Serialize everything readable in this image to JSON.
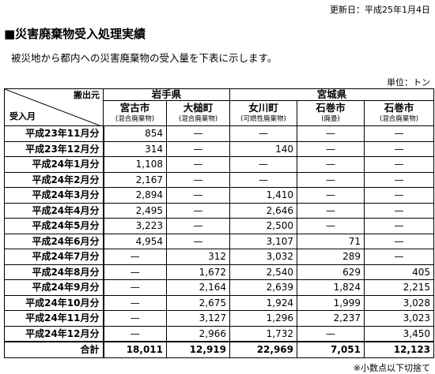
{
  "updated": "更新日：平成25年1月4日",
  "title": "■災害廃棄物受入処理実績",
  "description": "被災地から都内への災害廃棄物の受入量を下表に示します。",
  "unit": "単位：トン",
  "table": {
    "corner": {
      "top": "搬出元",
      "bottom": "受入月"
    },
    "groups": [
      "岩手県",
      "宮城県"
    ],
    "columns": [
      {
        "name": "宮古市",
        "sub": "(混合廃棄物)"
      },
      {
        "name": "大槌町",
        "sub": "(混合廃棄物)"
      },
      {
        "name": "女川町",
        "sub": "(可燃性廃棄物)"
      },
      {
        "name": "石巻市",
        "sub": "(廃畳)"
      },
      {
        "name": "石巻市",
        "sub": "(混合廃棄物)"
      }
    ],
    "rows": [
      {
        "label": "平成23年11月分",
        "cells": [
          "854",
          "—",
          "—",
          "—",
          "—"
        ]
      },
      {
        "label": "平成23年12月分",
        "cells": [
          "314",
          "—",
          "140",
          "—",
          "—"
        ]
      },
      {
        "label": "平成24年1月分",
        "cells": [
          "1,108",
          "—",
          "—",
          "—",
          "—"
        ]
      },
      {
        "label": "平成24年2月分",
        "cells": [
          "2,167",
          "—",
          "—",
          "—",
          "—"
        ]
      },
      {
        "label": "平成24年3月分",
        "cells": [
          "2,894",
          "—",
          "1,410",
          "—",
          "—"
        ]
      },
      {
        "label": "平成24年4月分",
        "cells": [
          "2,495",
          "—",
          "2,646",
          "—",
          "—"
        ]
      },
      {
        "label": "平成24年5月分",
        "cells": [
          "3,223",
          "—",
          "2,500",
          "—",
          "—"
        ]
      },
      {
        "label": "平成24年6月分",
        "cells": [
          "4,954",
          "—",
          "3,107",
          "71",
          "—"
        ]
      },
      {
        "label": "平成24年7月分",
        "cells": [
          "—",
          "312",
          "3,032",
          "289",
          "—"
        ]
      },
      {
        "label": "平成24年8月分",
        "cells": [
          "—",
          "1,672",
          "2,540",
          "629",
          "405"
        ]
      },
      {
        "label": "平成24年9月分",
        "cells": [
          "—",
          "2,164",
          "2,639",
          "1,824",
          "2,215"
        ]
      },
      {
        "label": "平成24年10月分",
        "cells": [
          "—",
          "2,675",
          "1,924",
          "1,999",
          "3,028"
        ]
      },
      {
        "label": "平成24年11月分",
        "cells": [
          "—",
          "3,127",
          "1,296",
          "2,237",
          "3,023"
        ]
      },
      {
        "label": "平成24年12月分",
        "cells": [
          "—",
          "2,966",
          "1,732",
          "—",
          "3,450"
        ]
      }
    ],
    "total": {
      "label": "合計",
      "cells": [
        "18,011",
        "12,919",
        "22,969",
        "7,051",
        "12,123"
      ]
    }
  },
  "note": "※小数点以下切捨て"
}
